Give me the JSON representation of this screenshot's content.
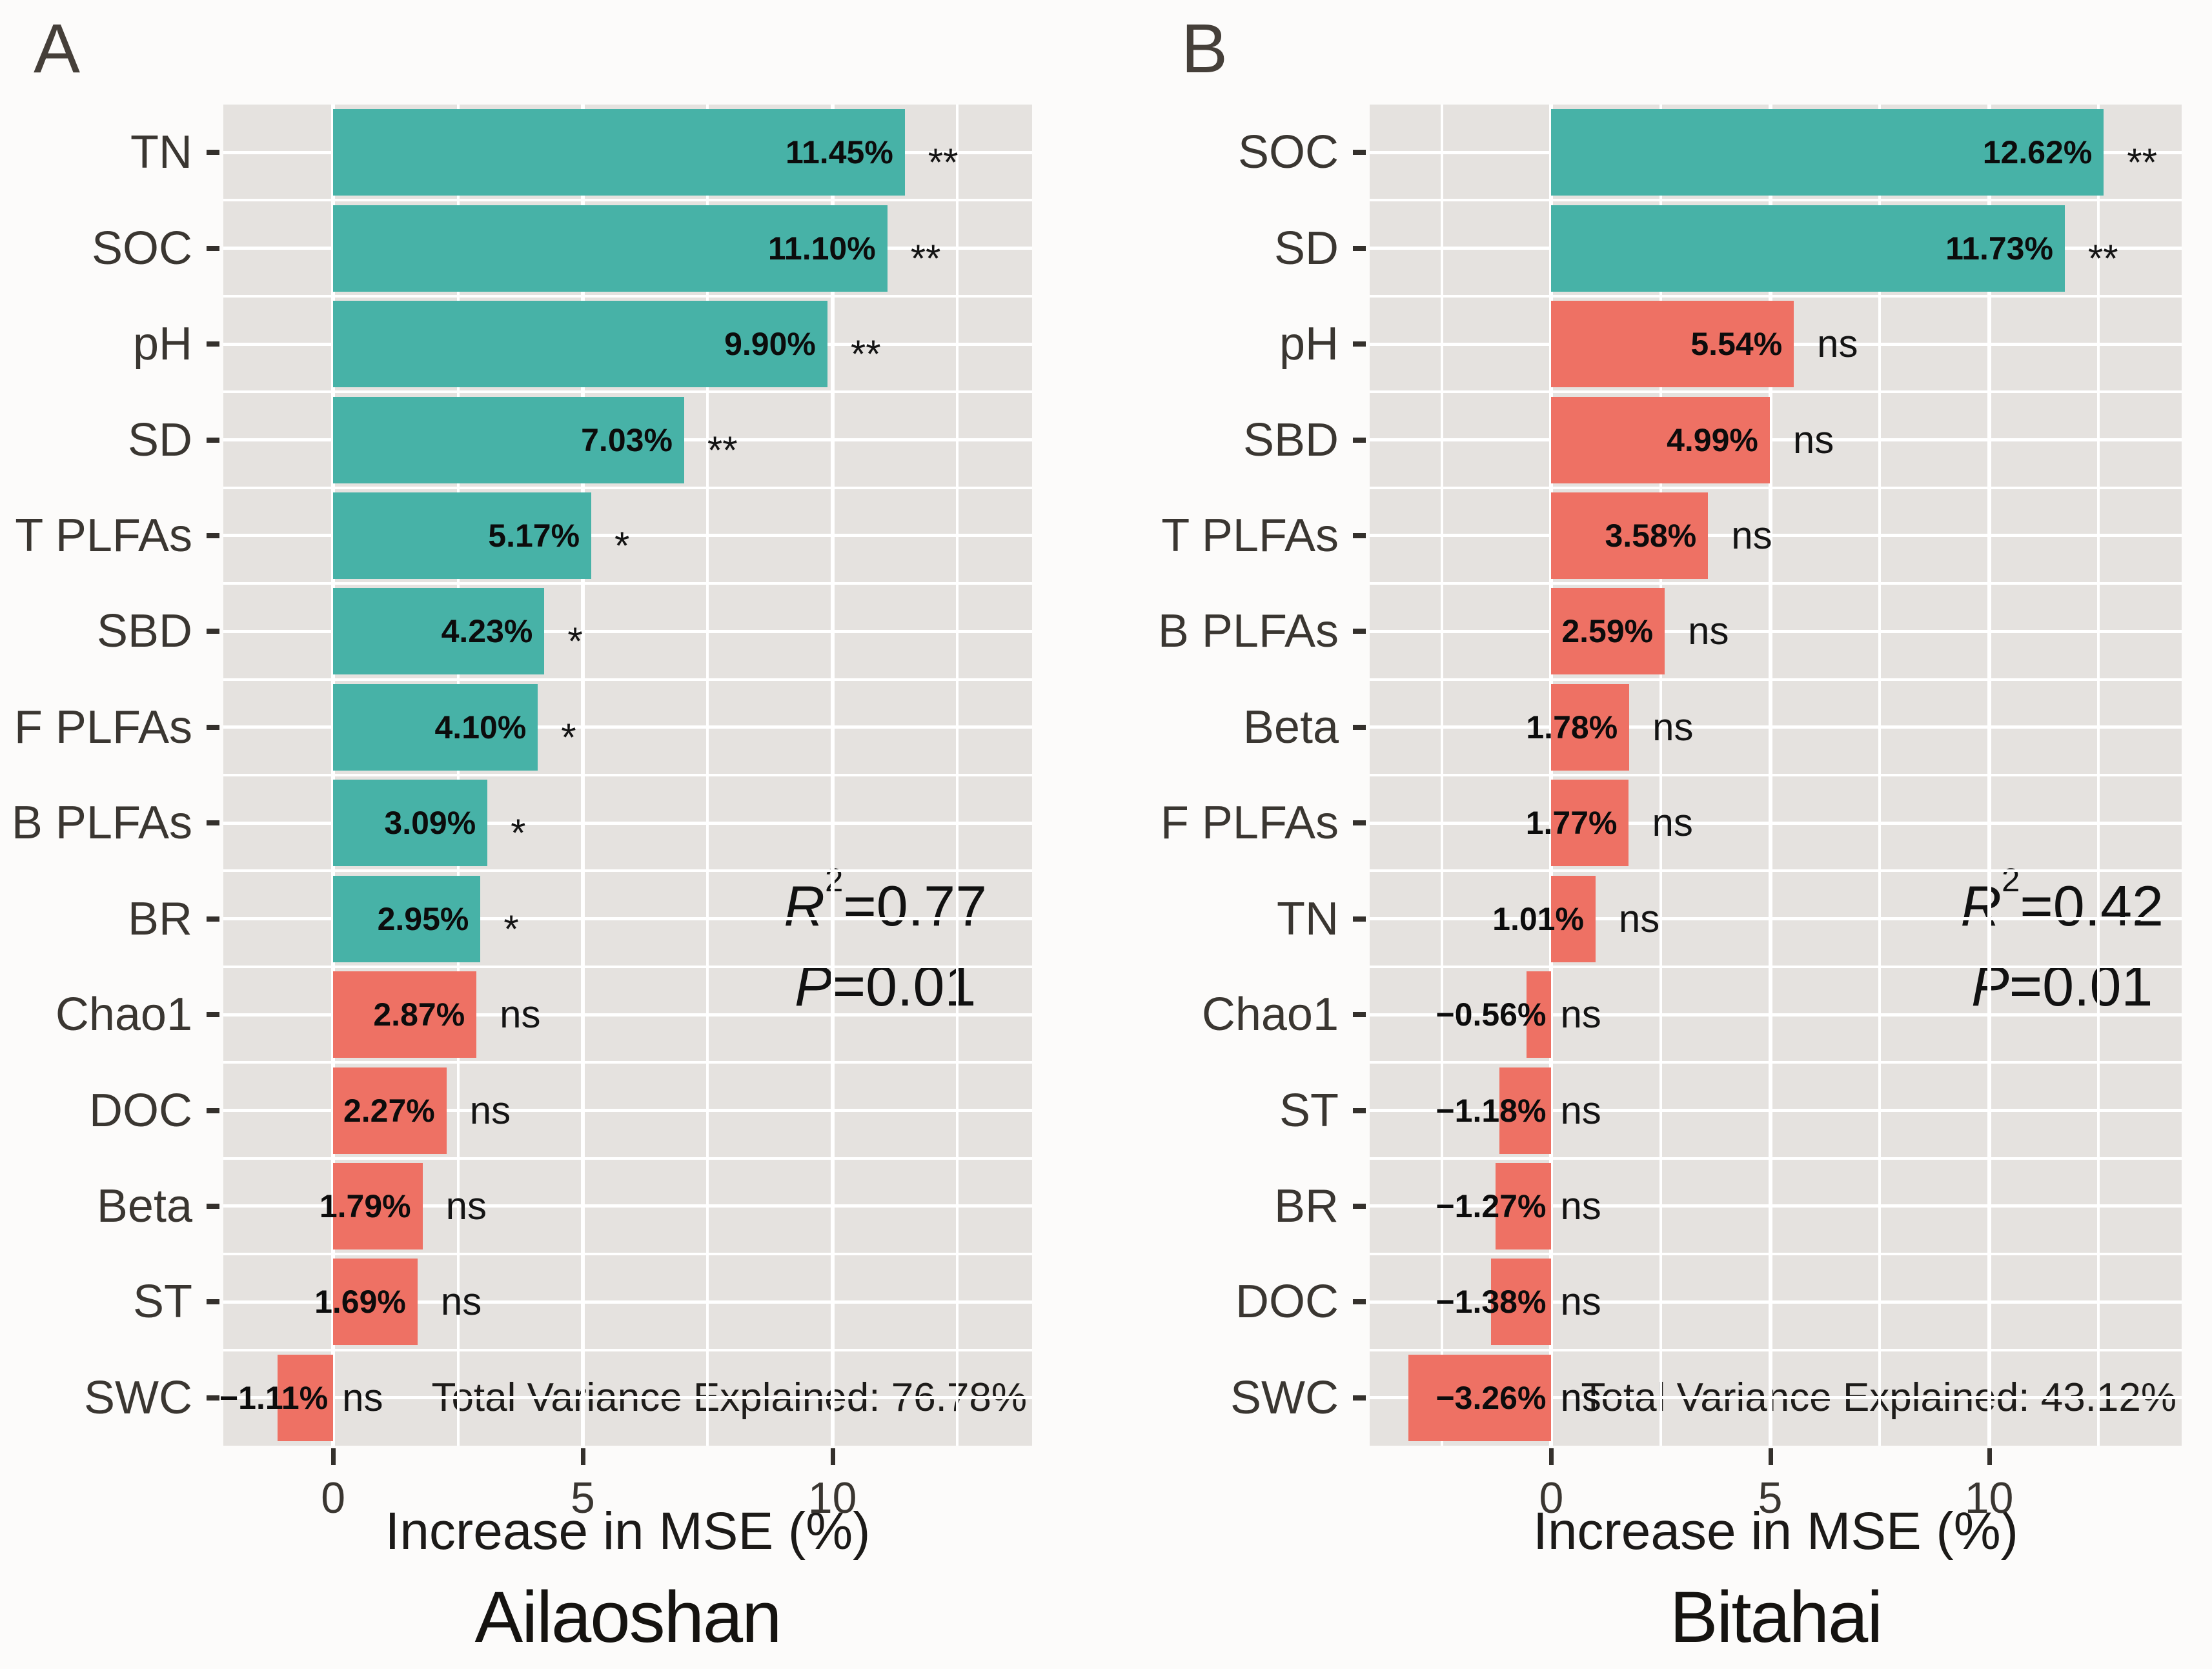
{
  "colors": {
    "significant_bar": "#47b2a7",
    "not_significant_bar": "#ee7164",
    "panel_background": "#e5e2df",
    "gridline": "#ffffff",
    "axis_text": "#3a3631",
    "label_text": "#0c0c0c"
  },
  "chart_data": [
    {
      "type": "bar",
      "orientation": "horizontal",
      "panel_label": "A",
      "site": "Ailaoshan",
      "xlabel": "Increase in MSE (%)",
      "categories": [
        "TN",
        "SOC",
        "pH",
        "SD",
        "T PLFAs",
        "SBD",
        "F PLFAs",
        "B PLFAs",
        "BR",
        "Chao1",
        "DOC",
        "Beta",
        "ST",
        "SWC"
      ],
      "values": [
        11.45,
        11.1,
        9.9,
        7.03,
        5.17,
        4.23,
        4.1,
        3.09,
        2.95,
        2.87,
        2.27,
        1.79,
        1.69,
        -1.11
      ],
      "value_labels": [
        "11.45%",
        "11.10%",
        "9.90%",
        "7.03%",
        "5.17%",
        "4.23%",
        "4.10%",
        "3.09%",
        "2.95%",
        "2.87%",
        "2.27%",
        "1.79%",
        "1.69%",
        "−1.11%"
      ],
      "significance": [
        "**",
        "**",
        "**",
        "**",
        "*",
        "*",
        "*",
        "*",
        "*",
        "ns",
        "ns",
        "ns",
        "ns",
        "ns"
      ],
      "xlim": [
        -2.2,
        14.0
      ],
      "xticks": [
        0,
        5,
        10
      ],
      "xtick_labels": [
        "0",
        "5",
        "10"
      ],
      "minor_gridlines": [
        2.5,
        7.5,
        12.5
      ],
      "grid": "on",
      "stats": {
        "r2_symbol": "R",
        "r2_sup": "2",
        "r2_eq": "=0.77",
        "p_symbol": "P",
        "p_eq": "=0.01"
      },
      "total_variance": "Total Variance Explained: 76.78%"
    },
    {
      "type": "bar",
      "orientation": "horizontal",
      "panel_label": "B",
      "site": "Bitahai",
      "xlabel": "Increase in MSE (%)",
      "categories": [
        "SOC",
        "SD",
        "pH",
        "SBD",
        "T PLFAs",
        "B PLFAs",
        "Beta",
        "F PLFAs",
        "TN",
        "Chao1",
        "ST",
        "BR",
        "DOC",
        "SWC"
      ],
      "values": [
        12.62,
        11.73,
        5.54,
        4.99,
        3.58,
        2.59,
        1.78,
        1.77,
        1.01,
        -0.56,
        -1.18,
        -1.27,
        -1.38,
        -3.26
      ],
      "value_labels": [
        "12.62%",
        "11.73%",
        "5.54%",
        "4.99%",
        "3.58%",
        "2.59%",
        "1.78%",
        "1.77%",
        "1.01%",
        "−0.56%",
        "−1.18%",
        "−1.27%",
        "−1.38%",
        "−3.26%"
      ],
      "significance": [
        "**",
        "**",
        "ns",
        "ns",
        "ns",
        "ns",
        "ns",
        "ns",
        "ns",
        "ns",
        "ns",
        "ns",
        "ns",
        "ns"
      ],
      "xlim": [
        -4.15,
        14.4
      ],
      "xticks": [
        0,
        5,
        10
      ],
      "xtick_labels": [
        "0",
        "5",
        "10"
      ],
      "minor_gridlines": [
        -2.5,
        2.5,
        7.5,
        12.5
      ],
      "grid": "on",
      "stats": {
        "r2_symbol": "R",
        "r2_sup": "2",
        "r2_eq": "=0.42",
        "p_symbol": "P",
        "p_eq": "=0.01"
      },
      "total_variance": "Total Variance Explained: 43.12%"
    }
  ]
}
